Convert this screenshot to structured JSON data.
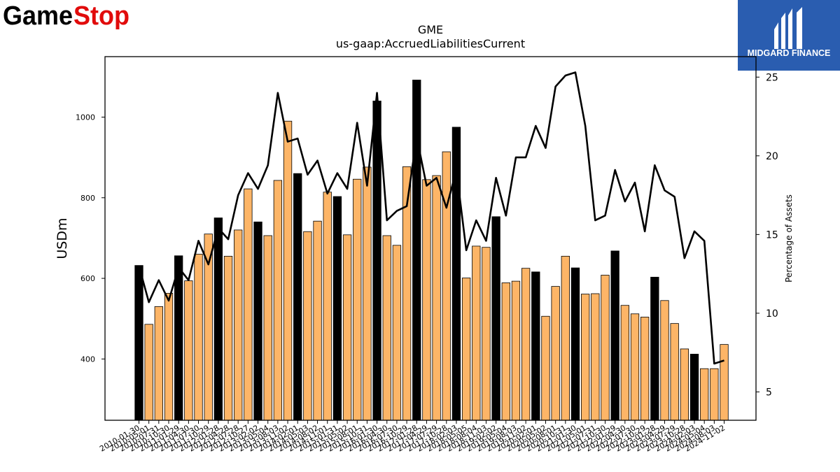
{
  "brand": {
    "company_logo_text_a": "Game",
    "company_logo_text_b": "Stop",
    "publisher_logo_text": "MIDGARD FINANCE",
    "bar_color": "#fdb567",
    "bar_highlight_color": "#000000",
    "publisher_bg": "#2a5db0"
  },
  "chart_data": {
    "type": "bar",
    "title": "GME",
    "subtitle": "us-gaap:AccruedLiabilitiesCurrent",
    "ylabel": "USDm",
    "y2label": "Percentage of Assets",
    "ylim": [
      248,
      1150
    ],
    "y2lim": [
      3.2,
      26.3
    ],
    "yticks": [
      400,
      600,
      800,
      1000
    ],
    "y2ticks": [
      5,
      10,
      15,
      20,
      25
    ],
    "grid": false,
    "categories": [
      "2010-01-30",
      "2010-05-01",
      "2010-07-31",
      "2010-10-30",
      "2011-01-29",
      "2011-04-30",
      "2011-07-30",
      "2011-10-29",
      "2012-01-28",
      "2012-04-28",
      "2012-07-28",
      "2012-10-27",
      "2013-02-02",
      "2013-05-04",
      "2013-08-03",
      "2013-11-02",
      "2014-02-01",
      "2014-05-03",
      "2014-08-02",
      "2014-11-01",
      "2015-01-31",
      "2015-05-02",
      "2015-08-01",
      "2015-10-31",
      "2016-01-30",
      "2016-04-30",
      "2016-07-30",
      "2016-10-29",
      "2017-01-28",
      "2017-04-29",
      "2017-07-29",
      "2017-10-28",
      "2018-02-03",
      "2018-05-05",
      "2018-08-04",
      "2018-11-03",
      "2019-02-02",
      "2019-05-04",
      "2019-08-03",
      "2019-11-02",
      "2020-02-01",
      "2020-05-02",
      "2020-08-01",
      "2020-10-31",
      "2021-01-30",
      "2021-05-01",
      "2021-07-31",
      "2021-10-30",
      "2022-01-29",
      "2022-04-30",
      "2022-07-30",
      "2022-10-29",
      "2023-01-28",
      "2023-04-29",
      "2023-07-29",
      "2023-10-28",
      "2024-02-03",
      "2024-05-04",
      "2024-08-03",
      "2024-11-02"
    ],
    "tick_labels_shown": [
      "2010-01-30",
      "2010-05-01",
      "2010-07-31",
      "2010-10-30",
      "2011-01-29",
      "2011-04-30",
      "2011-07-30",
      "2011-10-29",
      "2012-01-28",
      "2012-04-28",
      "2012-07-28",
      "2012-10-27",
      "2013-02-02",
      "2013-05-04",
      "2013-08-03",
      "2013-11-02",
      "2014-02-01",
      "2014-05-03",
      "2014-08-02",
      "2014-11-01",
      "2015-01-31",
      "2015-05-02",
      "2015-08-01",
      "2015-10-31",
      "2016-01-30",
      "2016-04-30",
      "2016-07-30",
      "2016-10-29",
      "2017-01-28",
      "2017-04-29",
      "2017-07-29",
      "2017-10-28",
      "2018-02-03",
      "2018-05-05",
      "2018-08-04",
      "2018-11-03",
      "2019-02-02",
      "2019-05-04",
      "2019-08-03",
      "2019-11-02",
      "2020-02-01",
      "2020-05-02",
      "2020-08-01",
      "2020-10-31",
      "2021-01-30",
      "2021-05-01",
      "2021-07-31",
      "2021-10-30",
      "2022-01-29",
      "2022-04-30",
      "2022-07-30",
      "2022-10-29",
      "2023-01-28",
      "2023-04-29",
      "2023-07-29",
      "2023-10-28",
      "2024-02-03",
      "2024-05-04",
      "2024-08-03",
      "2024-11-02"
    ],
    "series": [
      {
        "type": "bar",
        "axis": "left",
        "values": [
          632,
          486,
          530,
          563,
          656,
          594,
          660,
          710,
          750,
          655,
          720,
          822,
          740,
          706,
          843,
          990,
          860,
          716,
          742,
          814,
          803,
          708,
          846,
          876,
          1040,
          706,
          682,
          877,
          1092,
          845,
          855,
          914,
          975,
          601,
          680,
          677,
          753,
          589,
          593,
          625,
          616,
          506,
          580,
          655,
          626,
          561,
          562,
          608,
          668,
          533,
          512,
          504,
          603,
          545,
          488,
          425,
          412,
          376,
          376,
          436
        ],
        "highlight": [
          true,
          false,
          false,
          false,
          true,
          false,
          false,
          false,
          true,
          false,
          false,
          false,
          true,
          false,
          false,
          false,
          true,
          false,
          false,
          false,
          true,
          false,
          false,
          false,
          true,
          false,
          false,
          false,
          true,
          false,
          false,
          false,
          true,
          false,
          false,
          false,
          true,
          false,
          false,
          false,
          true,
          false,
          false,
          false,
          true,
          false,
          false,
          false,
          true,
          false,
          false,
          false,
          true,
          false,
          false,
          false,
          true,
          false,
          false,
          false
        ]
      },
      {
        "type": "line",
        "axis": "right",
        "values": [
          13.0,
          10.7,
          12.1,
          10.8,
          12.9,
          12.1,
          14.6,
          13.1,
          15.4,
          14.7,
          17.5,
          18.9,
          17.9,
          19.4,
          24.0,
          20.9,
          21.1,
          18.8,
          19.7,
          17.6,
          18.9,
          17.9,
          22.1,
          18.1,
          24.0,
          15.9,
          16.5,
          16.8,
          21.2,
          18.1,
          18.6,
          16.7,
          19.1,
          14.0,
          15.9,
          14.6,
          18.6,
          16.2,
          19.9,
          19.9,
          21.9,
          20.5,
          24.4,
          25.1,
          25.3,
          21.9,
          15.9,
          16.2,
          19.1,
          17.1,
          18.3,
          15.2,
          19.4,
          17.8,
          17.4,
          13.5,
          15.2,
          14.6,
          6.8,
          7.0
        ]
      }
    ]
  }
}
